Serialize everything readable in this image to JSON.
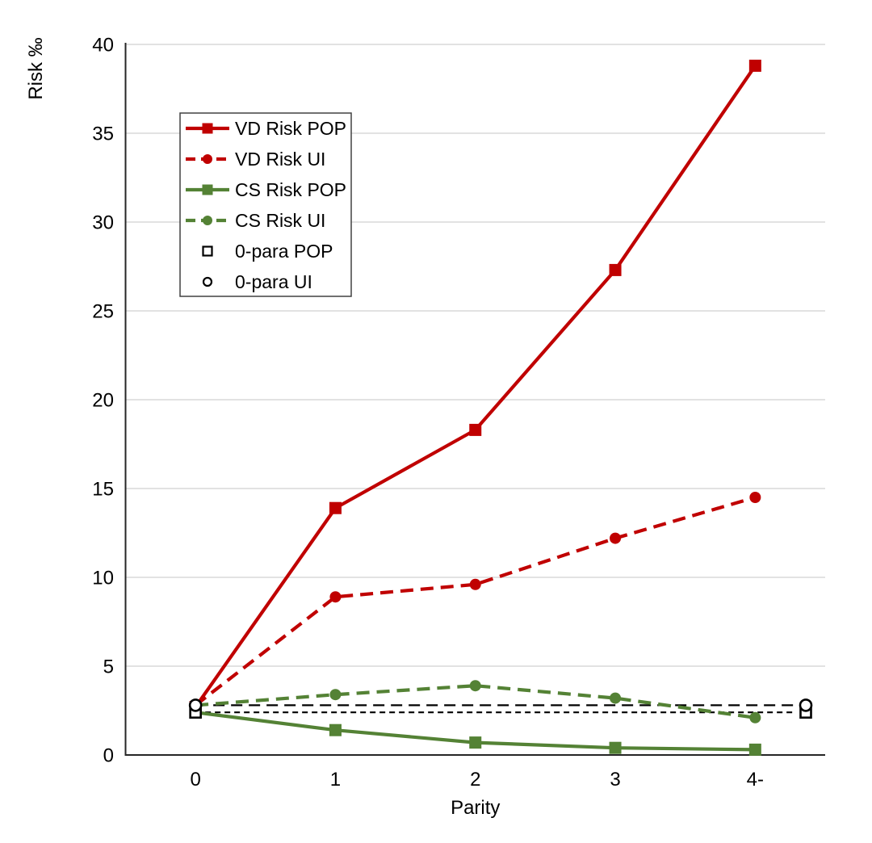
{
  "page": {
    "background": "#ffffff"
  },
  "chart_data": {
    "type": "line",
    "title": "",
    "xlabel": "Parity",
    "ylabel": "Risk ‰",
    "categories": [
      "0",
      "1",
      "2",
      "3",
      "4-"
    ],
    "ylim": [
      0,
      40
    ],
    "yticks": [
      0,
      5,
      10,
      15,
      20,
      25,
      30,
      35,
      40
    ],
    "grid": "horizontal-only",
    "gridline_color": "#d9d9d9",
    "axis_color": "#262626",
    "legend_position": "upper-left-inside",
    "series": [
      {
        "name": "VD Risk POP",
        "kind": "line",
        "color": "#c00000",
        "line_style": "solid",
        "marker": "square-filled",
        "values": [
          2.7,
          13.9,
          18.3,
          27.3,
          38.8
        ]
      },
      {
        "name": "VD Risk UI",
        "kind": "line",
        "color": "#c00000",
        "line_style": "dashed",
        "marker": "circle-filled",
        "values": [
          2.8,
          8.9,
          9.6,
          12.2,
          14.5
        ]
      },
      {
        "name": "CS Risk POP",
        "kind": "line",
        "color": "#548235",
        "line_style": "solid",
        "marker": "square-filled",
        "values": [
          2.4,
          1.4,
          0.7,
          0.4,
          0.3
        ]
      },
      {
        "name": "CS Risk UI",
        "kind": "line",
        "color": "#548235",
        "line_style": "dashed",
        "marker": "circle-filled",
        "values": [
          2.8,
          3.4,
          3.9,
          3.2,
          2.1
        ]
      },
      {
        "name": "0-para POP",
        "kind": "reference",
        "color": "#000000",
        "line_style": "short-dash",
        "marker": "square-open",
        "value": 2.4
      },
      {
        "name": "0-para UI",
        "kind": "reference",
        "color": "#000000",
        "line_style": "long-dash",
        "marker": "circle-open",
        "value": 2.8
      }
    ]
  }
}
